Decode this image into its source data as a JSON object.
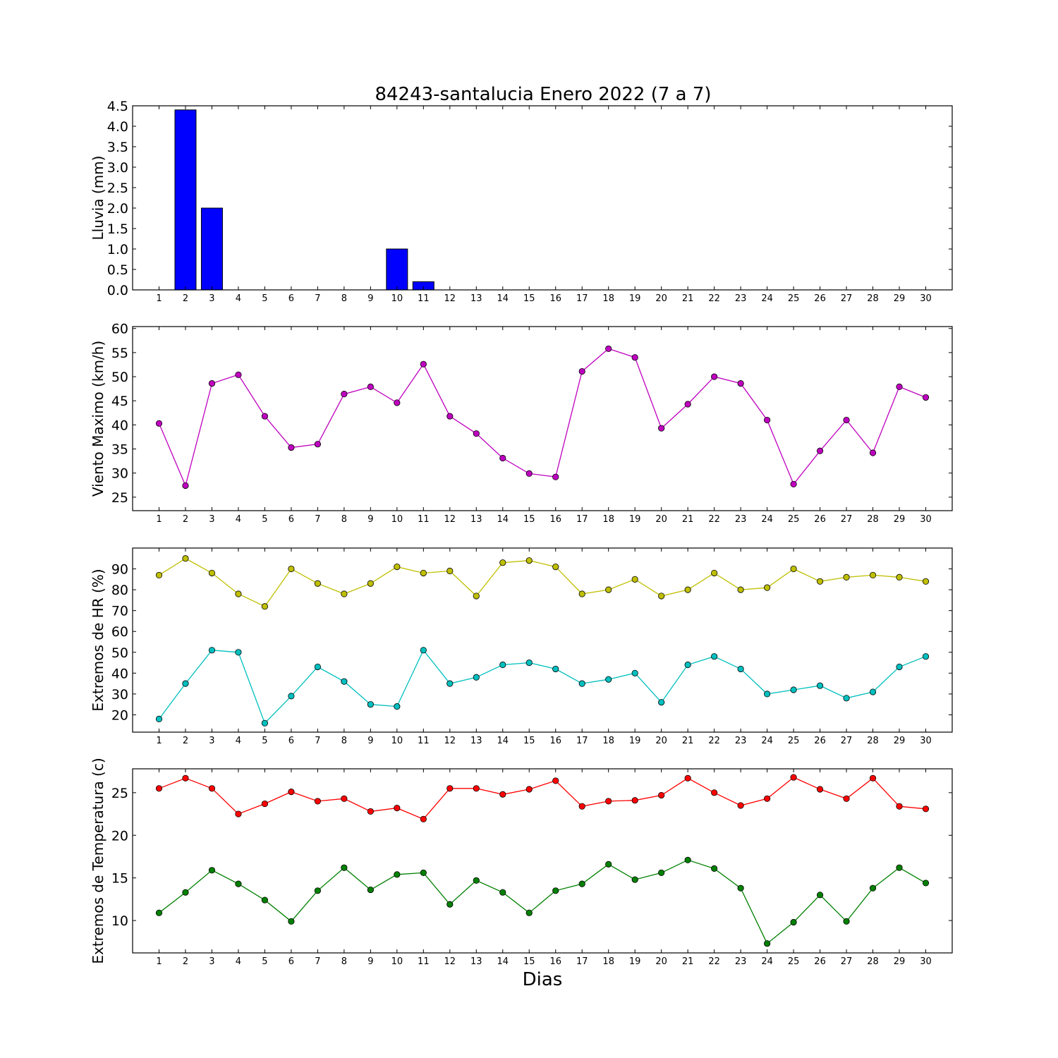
{
  "title": "84243-santalucia Enero 2022  (7 a 7)",
  "xlabel": "Dias",
  "colors": {
    "bar": "#0000ff",
    "wind": "#bf00bf",
    "hr_max": "#bfbf00",
    "hr_min": "#00bfbf",
    "t_max": "#ff0000",
    "t_min": "#008000"
  },
  "chart_data": [
    {
      "id": "lluvia",
      "type": "bar",
      "ylabel": "Lluvia (mm)",
      "categories": [
        "1",
        "2",
        "3",
        "4",
        "5",
        "6",
        "7",
        "8",
        "9",
        "10",
        "11",
        "12",
        "13",
        "14",
        "15",
        "16",
        "17",
        "18",
        "19",
        "20",
        "21",
        "22",
        "23",
        "24",
        "25",
        "26",
        "27",
        "28",
        "29",
        "30"
      ],
      "ylim": [
        0,
        4.5
      ],
      "yticks": [
        0,
        0.5,
        1,
        1.5,
        2,
        2.5,
        3,
        3.5,
        4,
        4.5
      ],
      "ytick_labels": [
        "0.0",
        "0.5",
        "1.0",
        "1.5",
        "2.0",
        "2.5",
        "3.0",
        "3.5",
        "4.0",
        "4.5"
      ],
      "series": [
        {
          "color": "#0000ff",
          "values": [
            0,
            4.4,
            2.0,
            0,
            0,
            0,
            0,
            0,
            0,
            1.0,
            0.2,
            0,
            0,
            0,
            0,
            0,
            0,
            0,
            0,
            0,
            0,
            0,
            0,
            0,
            0,
            0,
            0,
            0,
            0,
            0
          ]
        }
      ]
    },
    {
      "id": "viento",
      "type": "line",
      "ylabel": "Viento Maximo (km/h)",
      "categories": [
        "1",
        "2",
        "3",
        "4",
        "5",
        "6",
        "7",
        "8",
        "9",
        "10",
        "11",
        "12",
        "13",
        "14",
        "15",
        "16",
        "17",
        "18",
        "19",
        "20",
        "21",
        "22",
        "23",
        "24",
        "25",
        "26",
        "27",
        "28",
        "29",
        "30"
      ],
      "ylim": [
        22.2,
        60.4
      ],
      "yticks": [
        25,
        30,
        35,
        40,
        45,
        50,
        55,
        60
      ],
      "ytick_labels": [
        "25",
        "30",
        "35",
        "40",
        "45",
        "50",
        "55",
        "60"
      ],
      "series": [
        {
          "color": "#bf00bf",
          "values": [
            40.3,
            27.4,
            48.6,
            50.4,
            41.8,
            35.3,
            36.0,
            46.4,
            47.9,
            44.6,
            52.6,
            41.8,
            38.2,
            33.1,
            29.9,
            29.2,
            51.1,
            55.8,
            54.0,
            39.3,
            44.3,
            50.0,
            48.6,
            41.0,
            27.7,
            34.6,
            41.0,
            34.2,
            47.9,
            45.7
          ]
        }
      ]
    },
    {
      "id": "hr",
      "type": "line",
      "ylabel": "Extremos de HR (%)",
      "categories": [
        "1",
        "2",
        "3",
        "4",
        "5",
        "6",
        "7",
        "8",
        "9",
        "10",
        "11",
        "12",
        "13",
        "14",
        "15",
        "16",
        "17",
        "18",
        "19",
        "20",
        "21",
        "22",
        "23",
        "24",
        "25",
        "26",
        "27",
        "28",
        "29",
        "30"
      ],
      "ylim": [
        11.7,
        100
      ],
      "yticks": [
        20,
        30,
        40,
        50,
        60,
        70,
        80,
        90
      ],
      "ytick_labels": [
        "20",
        "30",
        "40",
        "50",
        "60",
        "70",
        "80",
        "90"
      ],
      "series": [
        {
          "color": "#bfbf00",
          "values": [
            87,
            95,
            88,
            78,
            72,
            90,
            83,
            78,
            83,
            91,
            88,
            89,
            77,
            93,
            94,
            91,
            78,
            80,
            85,
            77,
            80,
            88,
            80,
            81,
            90,
            84,
            86,
            87,
            86,
            84
          ]
        },
        {
          "color": "#00bfbf",
          "values": [
            18,
            35,
            51,
            50,
            16,
            29,
            43,
            36,
            25,
            24,
            51,
            35,
            38,
            44,
            45,
            42,
            35,
            37,
            40,
            26,
            44,
            48,
            42,
            30,
            32,
            34,
            28,
            31,
            43,
            48
          ]
        }
      ]
    },
    {
      "id": "temperatura",
      "type": "line",
      "ylabel": "Extremos de Temperatura (c)",
      "categories": [
        "1",
        "2",
        "3",
        "4",
        "5",
        "6",
        "7",
        "8",
        "9",
        "10",
        "11",
        "12",
        "13",
        "14",
        "15",
        "16",
        "17",
        "18",
        "19",
        "20",
        "21",
        "22",
        "23",
        "24",
        "25",
        "26",
        "27",
        "28",
        "29",
        "30"
      ],
      "ylim": [
        6.2,
        27.8
      ],
      "yticks": [
        10,
        15,
        20,
        25
      ],
      "ytick_labels": [
        "10",
        "15",
        "20",
        "25"
      ],
      "series": [
        {
          "color": "#ff0000",
          "values": [
            25.5,
            26.7,
            25.5,
            22.5,
            23.7,
            25.1,
            24.0,
            24.3,
            22.8,
            23.2,
            21.9,
            25.5,
            25.5,
            24.8,
            25.4,
            26.4,
            23.4,
            24.0,
            24.1,
            24.7,
            26.7,
            25.0,
            23.5,
            24.3,
            26.8,
            25.4,
            24.3,
            26.7,
            23.4,
            23.1
          ]
        },
        {
          "color": "#008000",
          "values": [
            10.9,
            13.3,
            15.9,
            14.3,
            12.4,
            9.9,
            13.5,
            16.2,
            13.6,
            15.4,
            15.6,
            11.9,
            14.7,
            13.3,
            10.9,
            13.5,
            14.3,
            16.6,
            14.8,
            15.6,
            17.1,
            16.1,
            13.8,
            7.3,
            9.8,
            13.0,
            9.9,
            13.8,
            16.2,
            14.4
          ]
        }
      ]
    }
  ]
}
